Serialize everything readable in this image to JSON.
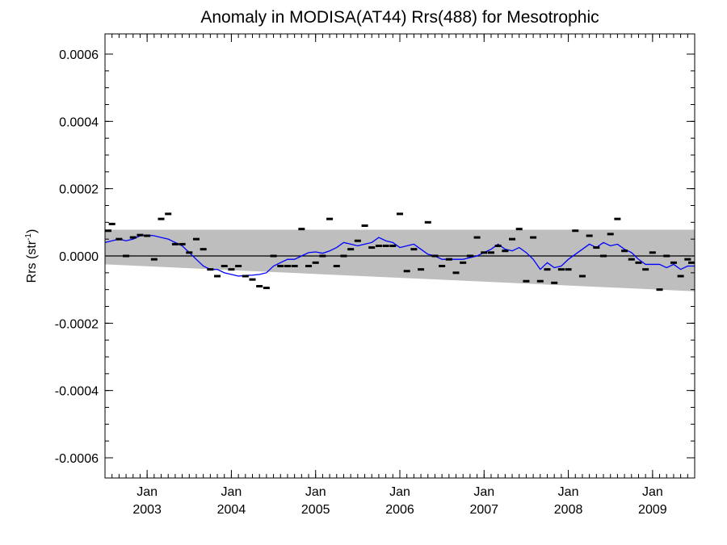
{
  "chart_data": {
    "type": "line",
    "title": "Anomaly in MODISA(AT44) Rrs(488) for Mesotrophic",
    "ylabel": "Rrs (str",
    "ylabel_sup": "-1",
    "ylabel_close": ")",
    "xlabel": "",
    "ylim": [
      -0.00066,
      0.00066
    ],
    "xlim": [
      "2002-07",
      "2009-07"
    ],
    "y_ticks": [
      -0.0006,
      -0.0004,
      -0.0002,
      0.0,
      0.0002,
      0.0004,
      0.0006
    ],
    "y_tick_labels": [
      "-0.0006",
      "-0.0004",
      "-0.0002",
      "0.0000",
      "0.0002",
      "0.0004",
      "0.0006"
    ],
    "x_ticks": [
      {
        "month": "Jan",
        "year": "2003",
        "date": "2003-01"
      },
      {
        "month": "Jan",
        "year": "2004",
        "date": "2004-01"
      },
      {
        "month": "Jan",
        "year": "2005",
        "date": "2005-01"
      },
      {
        "month": "Jan",
        "year": "2006",
        "date": "2006-01"
      },
      {
        "month": "Jan",
        "year": "2007",
        "date": "2007-01"
      },
      {
        "month": "Jan",
        "year": "2008",
        "date": "2008-01"
      },
      {
        "month": "Jan",
        "year": "2009",
        "date": "2009-01"
      }
    ],
    "grid": false,
    "legend": "none",
    "band": {
      "dates": [
        "2002-07",
        "2009-07"
      ],
      "upper": [
        7.8e-05,
        7.8e-05
      ],
      "lower": [
        -2.5e-05,
        -0.000105
      ],
      "color": "#bebebe"
    },
    "zero_line": 0.0,
    "series": [
      {
        "kind": "markers",
        "color": "#000000",
        "dates": [
          "2002-07",
          "2002-08",
          "2002-09",
          "2002-10",
          "2002-11",
          "2002-12",
          "2003-01",
          "2003-02",
          "2003-03",
          "2003-04",
          "2003-05",
          "2003-06",
          "2003-07",
          "2003-08",
          "2003-09",
          "2003-10",
          "2003-11",
          "2003-12",
          "2004-01",
          "2004-02",
          "2004-03",
          "2004-04",
          "2004-05",
          "2004-06",
          "2004-07",
          "2004-08",
          "2004-09",
          "2004-10",
          "2004-11",
          "2004-12",
          "2005-01",
          "2005-02",
          "2005-03",
          "2005-04",
          "2005-05",
          "2005-06",
          "2005-07",
          "2005-08",
          "2005-09",
          "2005-10",
          "2005-11",
          "2005-12",
          "2006-01",
          "2006-02",
          "2006-03",
          "2006-04",
          "2006-05",
          "2006-06",
          "2006-07",
          "2006-08",
          "2006-09",
          "2006-10",
          "2006-11",
          "2006-12",
          "2007-01",
          "2007-02",
          "2007-03",
          "2007-04",
          "2007-05",
          "2007-06",
          "2007-07",
          "2007-08",
          "2007-09",
          "2007-10",
          "2007-11",
          "2007-12",
          "2008-01",
          "2008-02",
          "2008-03",
          "2008-04",
          "2008-05",
          "2008-06",
          "2008-07",
          "2008-08",
          "2008-09",
          "2008-10",
          "2008-11",
          "2008-12",
          "2009-01",
          "2009-02",
          "2009-03",
          "2009-04",
          "2009-05",
          "2009-06",
          "2009-07"
        ],
        "values": [
          7.5e-05,
          9.5e-05,
          5e-05,
          0.0,
          5.5e-05,
          6.2e-05,
          6e-05,
          -1e-05,
          0.00011,
          0.000125,
          3.5e-05,
          3.5e-05,
          1e-05,
          5e-05,
          2e-05,
          -4e-05,
          -6e-05,
          -3e-05,
          -4e-05,
          -3e-05,
          -6e-05,
          -7e-05,
          -9e-05,
          -9.5e-05,
          0.0,
          -3e-05,
          -3e-05,
          -3e-05,
          8e-05,
          -3e-05,
          -2e-05,
          0.0,
          0.00011,
          -3e-05,
          0.0,
          2e-05,
          4.5e-05,
          9e-05,
          2.5e-05,
          3e-05,
          3e-05,
          3e-05,
          0.000125,
          -4.5e-05,
          2e-05,
          -4e-05,
          0.0001,
          0.0,
          -3e-05,
          -1e-05,
          -5e-05,
          -2e-05,
          0.0,
          5.5e-05,
          1e-05,
          1e-05,
          3e-05,
          1.5e-05,
          5e-05,
          8e-05,
          -7.5e-05,
          5.5e-05,
          -7.5e-05,
          -4e-05,
          -8e-05,
          -4e-05,
          -4e-05,
          7.5e-05,
          -6e-05,
          6e-05,
          2.5e-05,
          0.0,
          6.5e-05,
          0.00011,
          1.5e-05,
          -1e-05,
          -2e-05,
          -4e-05,
          1e-05,
          -0.0001,
          0.0,
          -2e-05,
          -6e-05,
          -1e-05,
          -2e-05
        ]
      },
      {
        "kind": "line",
        "color": "#0000ff",
        "dates": [
          "2002-07",
          "2002-08",
          "2002-09",
          "2002-10",
          "2002-11",
          "2002-12",
          "2003-01",
          "2003-02",
          "2003-03",
          "2003-04",
          "2003-05",
          "2003-06",
          "2003-07",
          "2003-08",
          "2003-09",
          "2003-10",
          "2003-11",
          "2003-12",
          "2004-01",
          "2004-02",
          "2004-03",
          "2004-04",
          "2004-05",
          "2004-06",
          "2004-07",
          "2004-08",
          "2004-09",
          "2004-10",
          "2004-11",
          "2004-12",
          "2005-01",
          "2005-02",
          "2005-03",
          "2005-04",
          "2005-05",
          "2005-06",
          "2005-07",
          "2005-08",
          "2005-09",
          "2005-10",
          "2005-11",
          "2005-12",
          "2006-01",
          "2006-02",
          "2006-03",
          "2006-04",
          "2006-05",
          "2006-06",
          "2006-07",
          "2006-08",
          "2006-09",
          "2006-10",
          "2006-11",
          "2006-12",
          "2007-01",
          "2007-02",
          "2007-03",
          "2007-04",
          "2007-05",
          "2007-06",
          "2007-07",
          "2007-08",
          "2007-09",
          "2007-10",
          "2007-11",
          "2007-12",
          "2008-01",
          "2008-02",
          "2008-03",
          "2008-04",
          "2008-05",
          "2008-06",
          "2008-07",
          "2008-08",
          "2008-09",
          "2008-10",
          "2008-11",
          "2008-12",
          "2009-01",
          "2009-02",
          "2009-03",
          "2009-04",
          "2009-05",
          "2009-06",
          "2009-07"
        ],
        "values": [
          4e-05,
          4.5e-05,
          5e-05,
          4.5e-05,
          5e-05,
          6e-05,
          6.2e-05,
          6e-05,
          5.5e-05,
          5e-05,
          4e-05,
          3e-05,
          1e-05,
          -1e-05,
          -3e-05,
          -4e-05,
          -4e-05,
          -5e-05,
          -5.5e-05,
          -6e-05,
          -5.8e-05,
          -5.7e-05,
          -5.5e-05,
          -5e-05,
          -3e-05,
          -2e-05,
          -1e-05,
          -1e-05,
          0.0,
          1e-05,
          1.2e-05,
          8e-06,
          1.5e-05,
          2.5e-05,
          4e-05,
          3.5e-05,
          3e-05,
          3.5e-05,
          4e-05,
          5.5e-05,
          4.5e-05,
          4e-05,
          2.5e-05,
          3e-05,
          3.5e-05,
          2e-05,
          5e-06,
          0.0,
          -1e-05,
          -1e-05,
          -1e-05,
          -1e-05,
          -5e-06,
          0.0,
          1e-05,
          2e-05,
          3.5e-05,
          2e-05,
          1.5e-05,
          2.5e-05,
          1e-05,
          -1e-05,
          -4e-05,
          -2e-05,
          -3.5e-05,
          -3e-05,
          -1e-05,
          5e-06,
          2e-05,
          3.5e-05,
          2.5e-05,
          4e-05,
          3e-05,
          3.5e-05,
          2e-05,
          1e-05,
          -1e-05,
          -2.5e-05,
          -2.5e-05,
          -2.5e-05,
          -3.5e-05,
          -2.5e-05,
          -4e-05,
          -3e-05,
          -3e-05
        ]
      }
    ]
  }
}
